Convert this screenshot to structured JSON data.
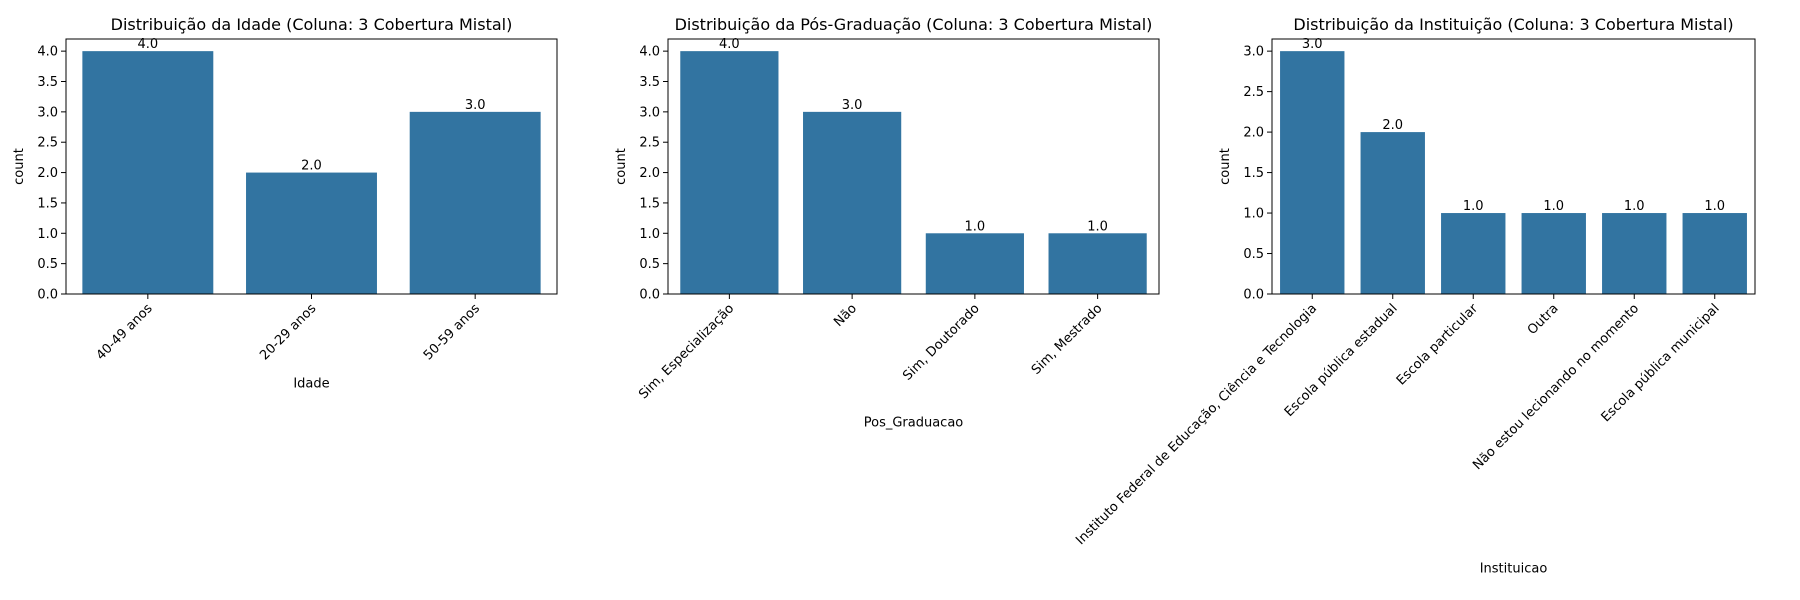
{
  "figure": {
    "background": "#ffffff",
    "bar_color": "#3274a1"
  },
  "chart_data": [
    {
      "type": "bar",
      "title": "Distribuição da Idade (Coluna: 3 Cobertura Mistal)",
      "xlabel": "Idade",
      "ylabel": "count",
      "categories": [
        "40-49 anos",
        "20-29 anos",
        "50-59 anos"
      ],
      "values": [
        4,
        2,
        3
      ],
      "data_labels": [
        "4.0",
        "2.0",
        "3.0"
      ],
      "ylim": [
        0,
        4.2
      ],
      "yticks": [
        0,
        0.5,
        1.0,
        1.5,
        2.0,
        2.5,
        3.0,
        3.5,
        4.0
      ],
      "ytick_labels": [
        "0.0",
        "0.5",
        "1.0",
        "1.5",
        "2.0",
        "2.5",
        "3.0",
        "3.5",
        "4.0"
      ],
      "xtick_rotation": 45,
      "grid": false,
      "legend": false
    },
    {
      "type": "bar",
      "title": "Distribuição da Pós-Graduação (Coluna: 3 Cobertura Mistal)",
      "xlabel": "Pos_Graduacao",
      "ylabel": "count",
      "categories": [
        "Sim, Especialização",
        "Não",
        "Sim, Doutorado",
        "Sim, Mestrado"
      ],
      "values": [
        4,
        3,
        1,
        1
      ],
      "data_labels": [
        "4.0",
        "3.0",
        "1.0",
        "1.0"
      ],
      "ylim": [
        0,
        4.2
      ],
      "yticks": [
        0,
        0.5,
        1.0,
        1.5,
        2.0,
        2.5,
        3.0,
        3.5,
        4.0
      ],
      "ytick_labels": [
        "0.0",
        "0.5",
        "1.0",
        "1.5",
        "2.0",
        "2.5",
        "3.0",
        "3.5",
        "4.0"
      ],
      "xtick_rotation": 45,
      "grid": false,
      "legend": false
    },
    {
      "type": "bar",
      "title": "Distribuição da Instituição (Coluna: 3 Cobertura Mistal)",
      "xlabel": "Instituicao",
      "ylabel": "count",
      "categories": [
        "Instituto Federal de Educação, Ciência e Tecnologia",
        "Escola pública estadual",
        "Escola particular",
        "Outra",
        "Não estou lecionando no momento",
        "Escola pública municipal"
      ],
      "values": [
        3,
        2,
        1,
        1,
        1,
        1
      ],
      "data_labels": [
        "3.0",
        "2.0",
        "1.0",
        "1.0",
        "1.0",
        "1.0"
      ],
      "ylim": [
        0,
        3.15
      ],
      "yticks": [
        0,
        0.5,
        1.0,
        1.5,
        2.0,
        2.5,
        3.0
      ],
      "ytick_labels": [
        "0.0",
        "0.5",
        "1.0",
        "1.5",
        "2.0",
        "2.5",
        "3.0"
      ],
      "xtick_rotation": 45,
      "grid": false,
      "legend": false
    }
  ]
}
